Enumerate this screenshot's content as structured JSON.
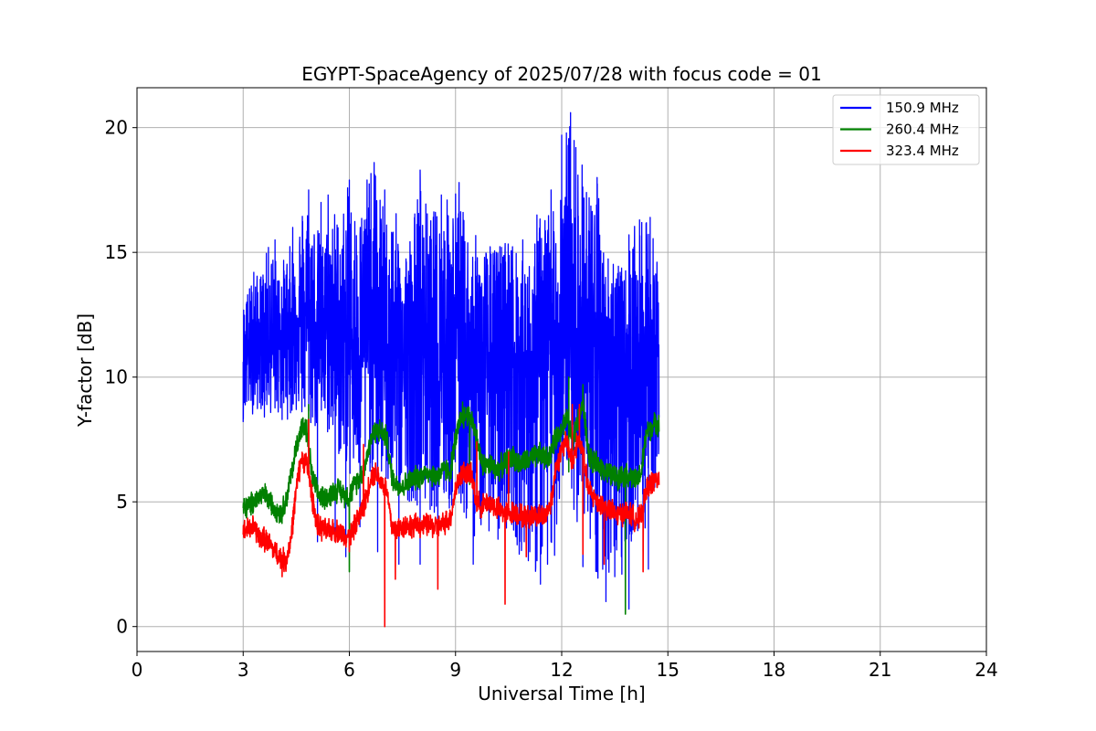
{
  "chart_data": {
    "type": "line",
    "title": "EGYPT-SpaceAgency of 2025/07/28 with focus code = 01",
    "xlabel": "Universal Time [h]",
    "ylabel": "Y-factor [dB]",
    "xlim": [
      0,
      24
    ],
    "ylim": [
      -1,
      21.6
    ],
    "x_ticks": [
      0,
      3,
      6,
      9,
      12,
      15,
      18,
      21,
      24
    ],
    "x_tick_labels": [
      "0",
      "3",
      "6",
      "9",
      "12",
      "15",
      "18",
      "21",
      "24"
    ],
    "y_ticks": [
      0,
      5,
      10,
      15,
      20
    ],
    "y_tick_labels": [
      "0",
      "5",
      "10",
      "15",
      "20"
    ],
    "grid": true,
    "legend_position": "top-right",
    "series": [
      {
        "name": "150.9 MHz",
        "color": "#0000ff",
        "x_range": [
          3.0,
          14.75
        ],
        "x": [
          3.0,
          3.25,
          3.5,
          3.75,
          4.0,
          4.25,
          4.5,
          4.75,
          5.0,
          5.25,
          5.5,
          5.75,
          6.0,
          6.25,
          6.5,
          6.75,
          7.0,
          7.25,
          7.5,
          7.75,
          8.0,
          8.25,
          8.5,
          8.75,
          9.0,
          9.25,
          9.5,
          9.75,
          10.0,
          10.25,
          10.5,
          10.75,
          11.0,
          11.25,
          11.5,
          11.75,
          12.0,
          12.25,
          12.5,
          12.75,
          13.0,
          13.25,
          13.5,
          13.75,
          14.0,
          14.25,
          14.5,
          14.75
        ],
        "y_center": [
          11.0,
          11.3,
          11.5,
          11.6,
          11.8,
          12.0,
          12.3,
          12.6,
          12.3,
          12.0,
          12.0,
          11.8,
          11.5,
          11.5,
          11.8,
          11.6,
          11.3,
          11.0,
          10.8,
          10.9,
          11.2,
          11.0,
          10.8,
          11.0,
          11.2,
          11.0,
          10.8,
          10.6,
          10.5,
          10.6,
          10.8,
          10.5,
          10.4,
          10.5,
          10.8,
          11.3,
          11.5,
          12.0,
          11.5,
          10.8,
          10.4,
          10.2,
          10.4,
          10.3,
          10.4,
          10.5,
          10.8,
          10.9
        ],
        "y_upper": [
          13.0,
          14.0,
          14.2,
          15.5,
          14.5,
          15.0,
          16.0,
          17.5,
          16.5,
          15.5,
          17.0,
          16.5,
          17.9,
          16.5,
          17.9,
          18.6,
          16.5,
          17.0,
          15.5,
          16.0,
          18.3,
          16.5,
          17.0,
          17.3,
          17.8,
          16.5,
          15.8,
          15.5,
          15.3,
          15.5,
          16.0,
          15.0,
          14.5,
          15.5,
          17.5,
          16.5,
          19.7,
          20.6,
          19.2,
          17.8,
          18.0,
          15.0,
          15.7,
          14.0,
          16.0,
          16.2,
          16.4,
          14.5
        ],
        "y_lower": [
          8.3,
          8.5,
          8.7,
          8.5,
          8.4,
          8.3,
          8.5,
          8.0,
          7.8,
          7.6,
          7.5,
          6.5,
          5.8,
          5.7,
          6.2,
          6.0,
          5.5,
          5.2,
          5.0,
          5.0,
          4.8,
          4.6,
          4.5,
          4.4,
          4.5,
          4.2,
          3.5,
          3.8,
          3.8,
          3.5,
          4.0,
          3.2,
          2.8,
          1.8,
          2.5,
          2.0,
          5.5,
          6.0,
          2.5,
          1.8,
          1.0,
          2.0,
          2.1,
          3.0,
          3.0,
          3.5,
          4.5,
          6.5
        ],
        "spikes_up": [
          [
            3.1,
            13.0
          ],
          [
            3.3,
            14.2
          ],
          [
            3.9,
            15.5
          ],
          [
            4.4,
            16.0
          ],
          [
            4.85,
            17.5
          ],
          [
            5.2,
            17.0
          ],
          [
            5.4,
            17.3
          ],
          [
            6.0,
            17.9
          ],
          [
            6.5,
            17.9
          ],
          [
            6.7,
            18.6
          ],
          [
            7.0,
            17.5
          ],
          [
            8.0,
            18.3
          ],
          [
            8.6,
            17.3
          ],
          [
            9.1,
            17.8
          ],
          [
            10.3,
            15.2
          ],
          [
            10.9,
            15.5
          ],
          [
            11.3,
            16.5
          ],
          [
            11.7,
            17.5
          ],
          [
            12.0,
            19.7
          ],
          [
            12.25,
            20.6
          ],
          [
            12.4,
            19.2
          ],
          [
            12.7,
            17.4
          ],
          [
            13.0,
            18.0
          ],
          [
            13.9,
            15.7
          ],
          [
            14.2,
            16.3
          ],
          [
            14.5,
            16.4
          ]
        ],
        "spikes_down": [
          [
            3.0,
            8.2
          ],
          [
            3.6,
            8.4
          ],
          [
            4.1,
            8.3
          ],
          [
            5.1,
            3.4
          ],
          [
            5.6,
            3.4
          ],
          [
            5.9,
            2.8
          ],
          [
            6.3,
            4.0
          ],
          [
            6.8,
            3.0
          ],
          [
            7.4,
            2.5
          ],
          [
            8.0,
            2.5
          ],
          [
            8.5,
            3.8
          ],
          [
            9.5,
            2.5
          ],
          [
            10.2,
            3.5
          ],
          [
            10.8,
            2.9
          ],
          [
            11.1,
            3.0
          ],
          [
            11.4,
            1.7
          ],
          [
            11.6,
            2.5
          ],
          [
            12.6,
            2.4
          ],
          [
            13.0,
            2.2
          ],
          [
            13.25,
            1.0
          ],
          [
            13.5,
            2.0
          ],
          [
            13.7,
            2.1
          ],
          [
            13.9,
            0.7
          ],
          [
            14.3,
            3.0
          ],
          [
            14.45,
            2.3
          ]
        ],
        "linewidth": 2.2
      },
      {
        "name": "260.4 MHz",
        "color": "#008000",
        "x": [
          3.0,
          3.15,
          3.3,
          3.45,
          3.6,
          3.75,
          3.9,
          4.05,
          4.2,
          4.35,
          4.5,
          4.65,
          4.8,
          4.95,
          5.1,
          5.25,
          5.4,
          5.55,
          5.7,
          5.85,
          6.0,
          6.15,
          6.3,
          6.45,
          6.6,
          6.75,
          6.9,
          7.05,
          7.2,
          7.35,
          7.5,
          7.65,
          7.8,
          7.95,
          8.1,
          8.25,
          8.4,
          8.55,
          8.7,
          8.85,
          9.0,
          9.15,
          9.3,
          9.45,
          9.6,
          9.75,
          9.9,
          10.05,
          10.2,
          10.35,
          10.5,
          10.65,
          10.8,
          10.95,
          11.1,
          11.25,
          11.4,
          11.55,
          11.7,
          11.85,
          12.0,
          12.15,
          12.3,
          12.45,
          12.6,
          12.75,
          12.9,
          13.05,
          13.2,
          13.35,
          13.5,
          13.65,
          13.8,
          13.95,
          14.1,
          14.25,
          14.4,
          14.55,
          14.75
        ],
        "y": [
          4.7,
          4.8,
          5.0,
          5.2,
          5.3,
          5.0,
          4.8,
          4.5,
          5.0,
          6.0,
          7.2,
          8.0,
          7.8,
          6.0,
          5.3,
          5.2,
          5.2,
          5.4,
          5.5,
          5.3,
          5.2,
          5.7,
          6.0,
          6.5,
          7.5,
          7.9,
          7.8,
          7.6,
          6.0,
          5.7,
          5.6,
          5.8,
          5.9,
          6.0,
          6.1,
          6.2,
          6.0,
          6.1,
          6.3,
          6.2,
          7.5,
          8.3,
          8.5,
          8.4,
          7.5,
          6.5,
          6.5,
          6.4,
          6.3,
          6.5,
          6.7,
          6.8,
          6.5,
          6.6,
          6.7,
          6.8,
          6.9,
          6.7,
          7.0,
          7.6,
          8.0,
          8.4,
          7.5,
          8.2,
          9.0,
          7.0,
          6.5,
          6.5,
          6.3,
          6.1,
          6.0,
          6.0,
          6.1,
          6.0,
          5.8,
          6.2,
          7.8,
          8.0,
          8.2
        ],
        "band": 0.35,
        "spikes_down": [
          [
            6.0,
            2.2
          ],
          [
            13.8,
            0.5
          ],
          [
            9.4,
            5.7
          ],
          [
            12.2,
            6.2
          ]
        ],
        "spikes_up": [
          [
            4.85,
            8.9
          ],
          [
            12.2,
            10.0
          ],
          [
            12.6,
            9.7
          ],
          [
            9.2,
            9.0
          ]
        ],
        "linewidth": 2.2
      },
      {
        "name": "323.4 MHz",
        "color": "#ff0000",
        "x": [
          3.0,
          3.15,
          3.3,
          3.45,
          3.6,
          3.75,
          3.9,
          4.05,
          4.2,
          4.35,
          4.5,
          4.65,
          4.8,
          4.95,
          5.1,
          5.25,
          5.4,
          5.55,
          5.7,
          5.85,
          6.0,
          6.15,
          6.3,
          6.45,
          6.6,
          6.75,
          6.9,
          7.05,
          7.2,
          7.35,
          7.5,
          7.65,
          7.8,
          7.95,
          8.1,
          8.25,
          8.4,
          8.55,
          8.7,
          8.85,
          9.0,
          9.15,
          9.3,
          9.45,
          9.6,
          9.75,
          9.9,
          10.05,
          10.2,
          10.35,
          10.5,
          10.65,
          10.8,
          10.95,
          11.1,
          11.25,
          11.4,
          11.55,
          11.7,
          11.85,
          12.0,
          12.15,
          12.3,
          12.45,
          12.6,
          12.75,
          12.9,
          13.05,
          13.2,
          13.35,
          13.5,
          13.65,
          13.8,
          13.95,
          14.1,
          14.25,
          14.4,
          14.55,
          14.75
        ],
        "y": [
          3.8,
          3.9,
          4.0,
          3.6,
          3.5,
          3.3,
          3.0,
          2.8,
          2.6,
          3.5,
          5.5,
          6.8,
          6.5,
          5.2,
          4.0,
          3.9,
          3.8,
          3.9,
          3.8,
          3.7,
          3.6,
          4.0,
          4.5,
          5.0,
          6.0,
          6.2,
          5.8,
          5.5,
          4.0,
          3.9,
          4.0,
          4.1,
          4.0,
          4.1,
          4.0,
          4.1,
          4.0,
          4.0,
          4.2,
          4.3,
          5.5,
          6.1,
          6.2,
          6.0,
          5.0,
          4.8,
          5.0,
          4.9,
          4.7,
          4.6,
          4.5,
          4.6,
          4.5,
          4.4,
          4.4,
          4.5,
          4.4,
          4.5,
          5.0,
          6.5,
          7.0,
          7.5,
          6.5,
          7.5,
          7.0,
          5.5,
          5.2,
          5.0,
          4.8,
          4.7,
          4.5,
          4.5,
          4.6,
          4.5,
          4.3,
          4.4,
          5.5,
          5.8,
          5.9
        ],
        "band": 0.35,
        "spikes_down": [
          [
            4.1,
            2.0
          ],
          [
            7.0,
            0.0
          ],
          [
            10.4,
            0.9
          ],
          [
            7.3,
            1.9
          ],
          [
            8.5,
            1.5
          ],
          [
            11.0,
            2.8
          ],
          [
            12.6,
            2.9
          ],
          [
            14.3,
            2.2
          ],
          [
            6.0,
            3.0
          ],
          [
            13.2,
            2.5
          ]
        ],
        "spikes_up": [
          [
            4.85,
            8.3
          ],
          [
            6.4,
            7.3
          ],
          [
            12.3,
            8.9
          ],
          [
            12.5,
            8.9
          ],
          [
            9.6,
            7.4
          ],
          [
            10.5,
            7.0
          ]
        ],
        "linewidth": 2.2
      }
    ]
  }
}
